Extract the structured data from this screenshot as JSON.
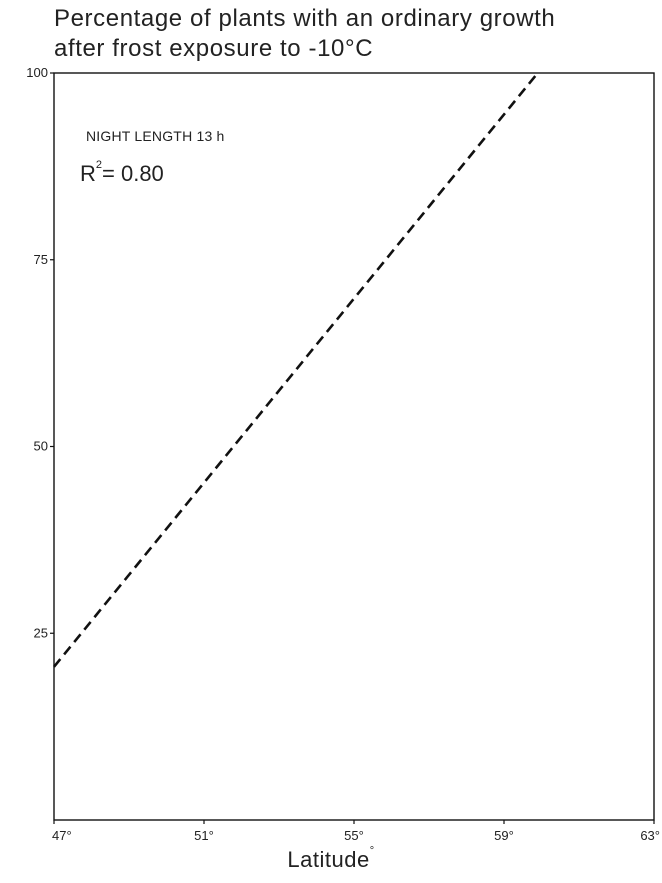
{
  "title_line1": "Percentage of plants with an ordinary growth",
  "title_line2": "after frost exposure to -10°C",
  "x_axis_label": "Latitude",
  "x_axis_label_degree": "°",
  "annotation_night": "NIGHT LENGTH 13 h",
  "annotation_r2_prefix": "R",
  "annotation_r2_sup": "2",
  "annotation_r2_value": "= 0.80",
  "chart_data": {
    "type": "line",
    "title": "Percentage of plants with an ordinary growth after frost exposure to -10°C",
    "xlabel": "Latitude°",
    "ylabel": "",
    "xlim": [
      47,
      63
    ],
    "ylim": [
      0,
      100
    ],
    "x_ticks": [
      47,
      51,
      55,
      59,
      63
    ],
    "x_tick_labels": [
      "47°",
      "51°",
      "55°",
      "59°",
      "63°"
    ],
    "y_ticks": [
      25,
      50,
      75,
      100
    ],
    "y_tick_labels": [
      "25",
      "50",
      "75",
      "100"
    ],
    "grid": false,
    "series": [
      {
        "line_style": "dashed",
        "color": "#111111",
        "x": [
          47,
          59.9
        ],
        "y": [
          20.5,
          100
        ]
      }
    ],
    "annotations": [
      "NIGHT LENGTH 13 h",
      "R² = 0.80"
    ]
  }
}
